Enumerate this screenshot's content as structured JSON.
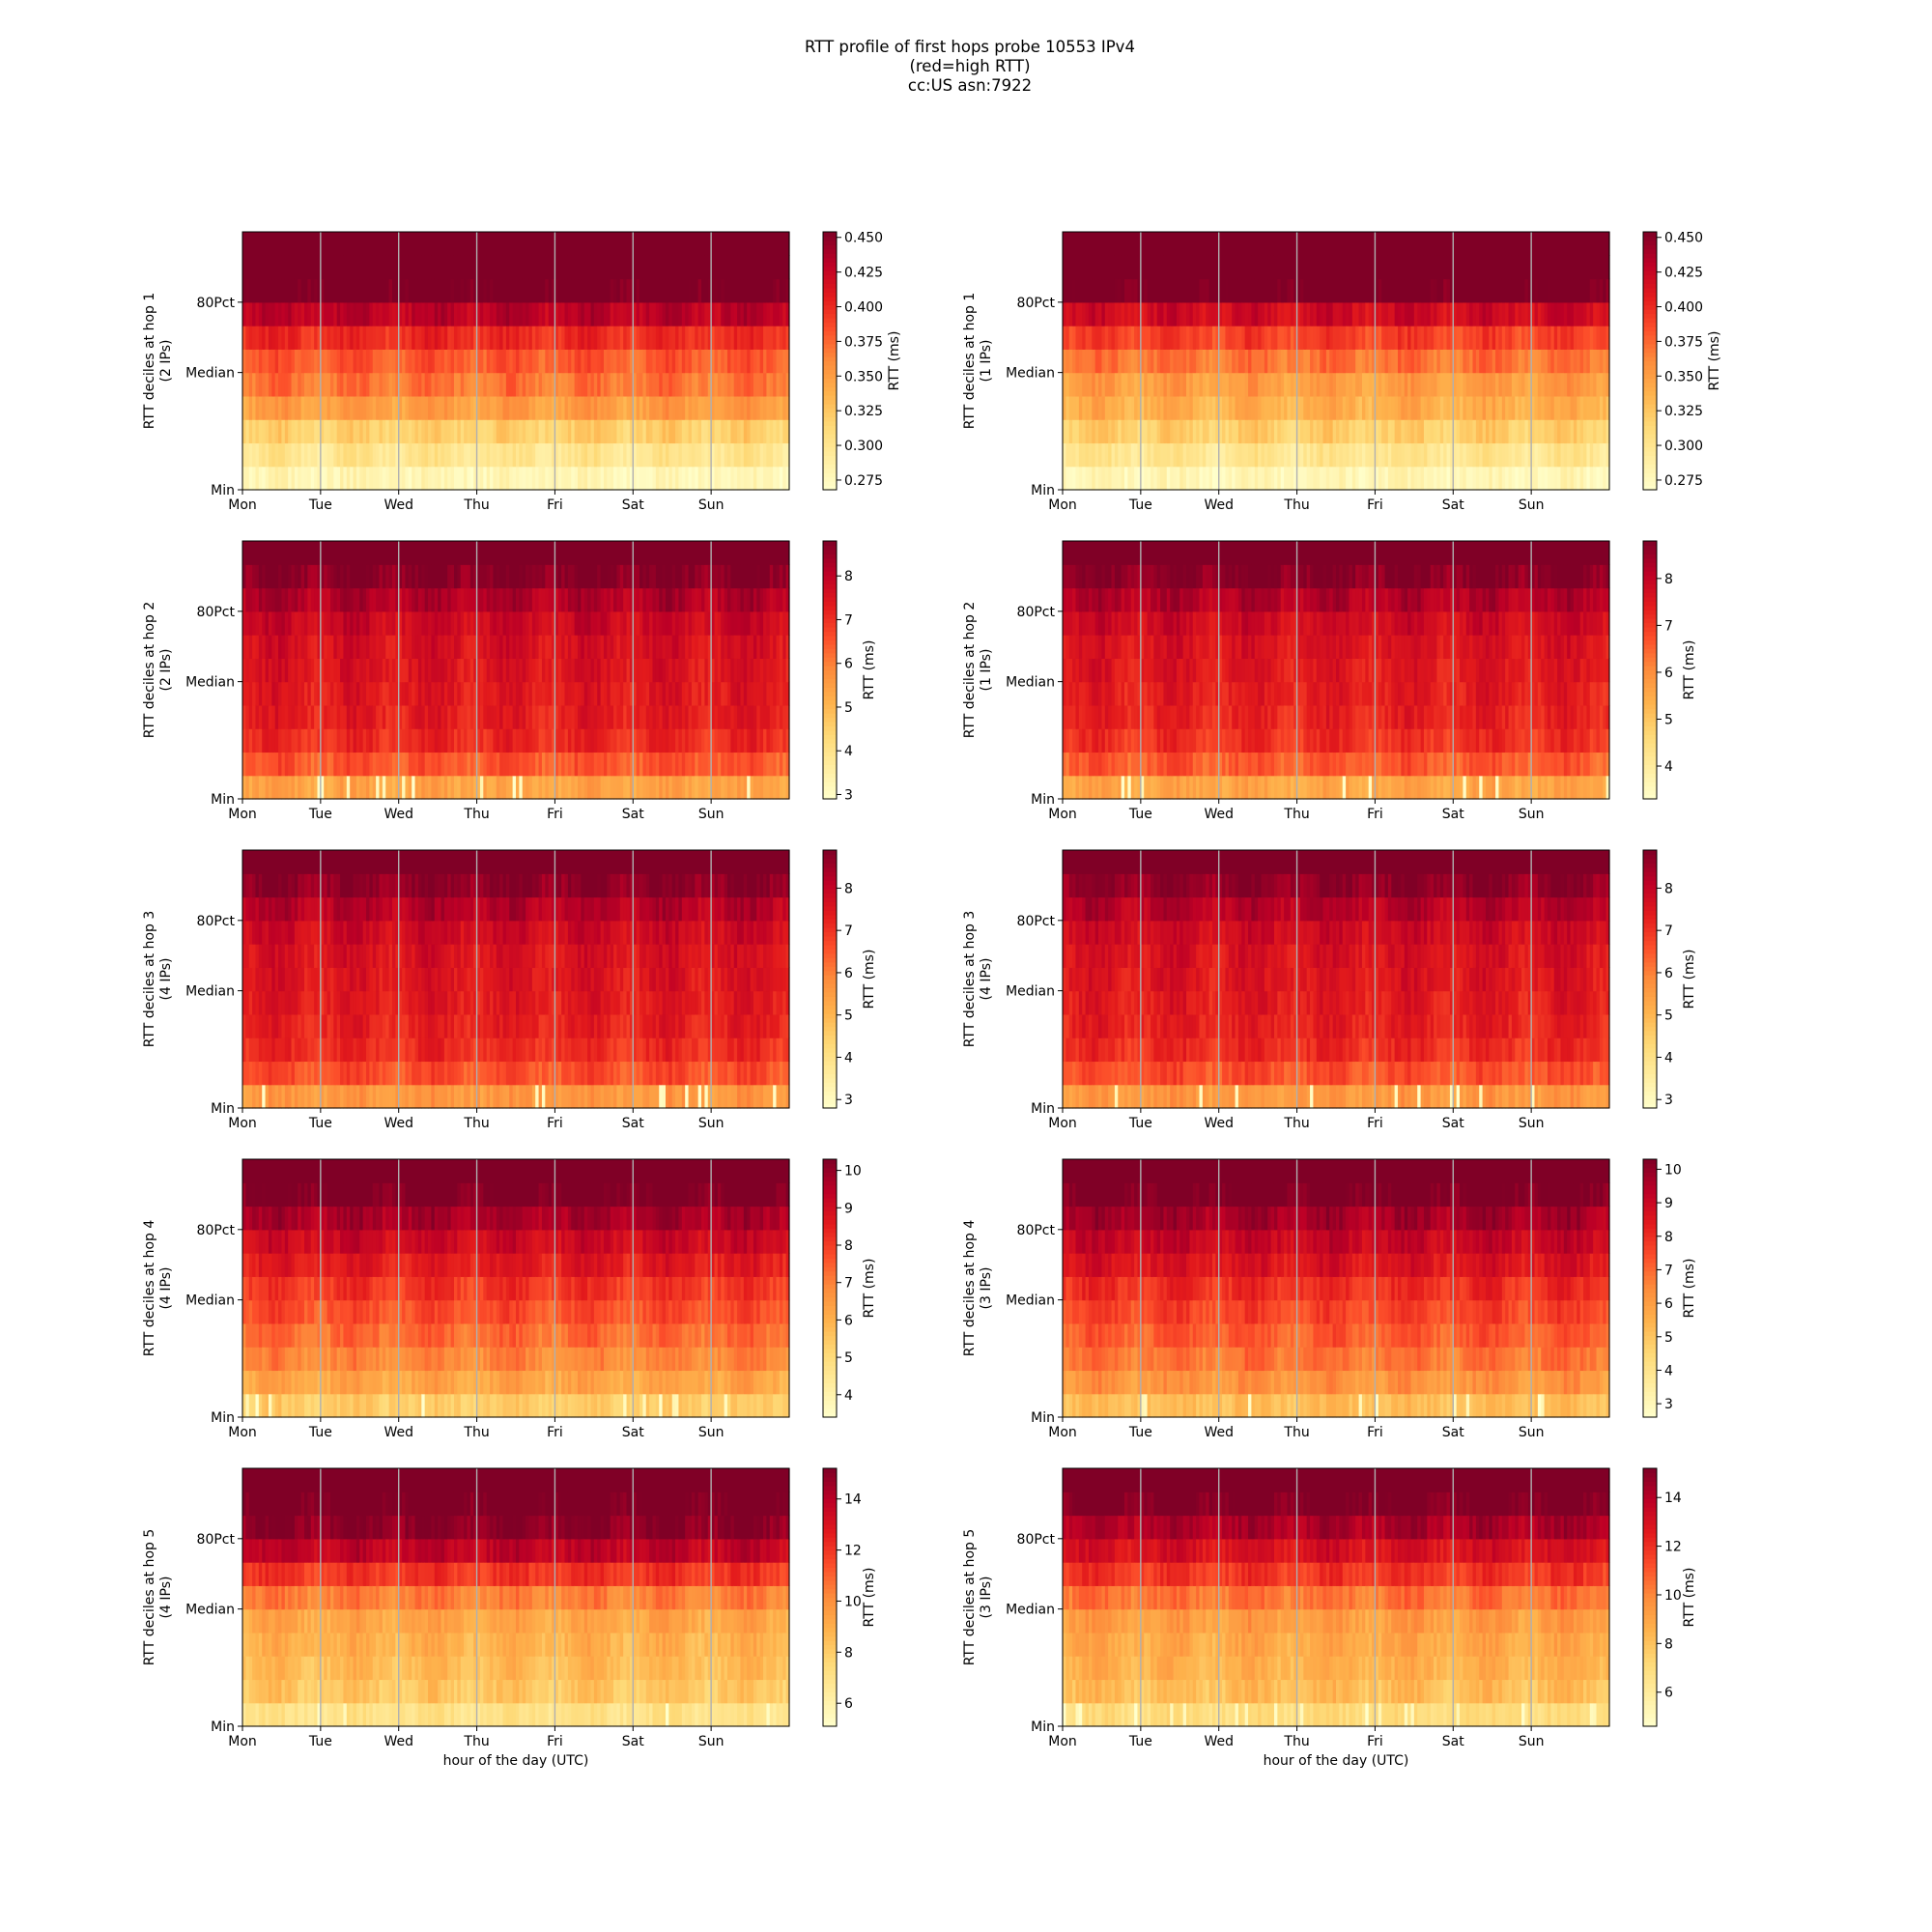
{
  "title_lines": [
    "RTT profile of first hops probe 10553 IPv4",
    "(red=high RTT)",
    "cc:US asn:7922"
  ],
  "chart_data": {
    "type": "heatmap",
    "colormap": "YlOrRd",
    "colormap_stops": [
      "#ffffcc",
      "#ffeda0",
      "#fed976",
      "#feb24c",
      "#fd8d3c",
      "#fc4e2a",
      "#e31a1c",
      "#bd0026",
      "#800026"
    ],
    "x_tick_labels": [
      "Mon",
      "Tue",
      "Wed",
      "Thu",
      "Fri",
      "Sat",
      "Sun"
    ],
    "x_range_hours": [
      0,
      168
    ],
    "y_tick_labels": [
      "Min",
      "Median",
      "80Pct"
    ],
    "y_tick_deciles": [
      0,
      5,
      8
    ],
    "y_range_deciles": [
      0,
      11
    ],
    "vertical_day_lines": true,
    "xlabel": "hour of the day (UTC)",
    "colorbar_label": "RTT (ms)",
    "panels": [
      {
        "row": 0,
        "col": 0,
        "ylabel_line1": "RTT deciles at hop 1",
        "ylabel_line2": "(2 IPs)",
        "xlabel": "",
        "cbar_ticks": [
          0.275,
          0.3,
          0.325,
          0.35,
          0.375,
          0.4,
          0.425,
          0.45
        ],
        "cbar_tick_labels": [
          "0.275",
          "0.300",
          "0.325",
          "0.350",
          "0.375",
          "0.400",
          "0.425",
          "0.450"
        ],
        "cbar_range": [
          0.268,
          0.454
        ],
        "decile_rtt_ms": [
          0.28,
          0.3,
          0.32,
          0.35,
          0.37,
          0.38,
          0.4,
          0.43,
          0.46,
          0.48,
          0.5
        ]
      },
      {
        "row": 0,
        "col": 1,
        "ylabel_line1": "RTT deciles at hop 1",
        "ylabel_line2": "(1 IPs)",
        "xlabel": "",
        "cbar_ticks": [
          0.275,
          0.3,
          0.325,
          0.35,
          0.375,
          0.4,
          0.425,
          0.45
        ],
        "cbar_tick_labels": [
          "0.275",
          "0.300",
          "0.325",
          "0.350",
          "0.375",
          "0.400",
          "0.425",
          "0.450"
        ],
        "cbar_range": [
          0.268,
          0.454
        ],
        "decile_rtt_ms": [
          0.28,
          0.3,
          0.32,
          0.34,
          0.35,
          0.37,
          0.39,
          0.42,
          0.46,
          0.48,
          0.5
        ]
      },
      {
        "row": 1,
        "col": 0,
        "ylabel_line1": "RTT deciles at hop 2",
        "ylabel_line2": "(2 IPs)",
        "xlabel": "",
        "cbar_ticks": [
          3,
          4,
          5,
          6,
          7,
          8
        ],
        "cbar_tick_labels": [
          "3",
          "4",
          "5",
          "6",
          "7",
          "8"
        ],
        "cbar_range": [
          2.9,
          8.8
        ],
        "decile_rtt_ms": [
          5.4,
          6.5,
          7.1,
          7.3,
          7.4,
          7.5,
          7.6,
          7.8,
          8.2,
          8.7,
          9.5
        ]
      },
      {
        "row": 1,
        "col": 1,
        "ylabel_line1": "RTT deciles at hop 2",
        "ylabel_line2": "(1 IPs)",
        "xlabel": "",
        "cbar_ticks": [
          4,
          5,
          6,
          7,
          8
        ],
        "cbar_tick_labels": [
          "4",
          "5",
          "6",
          "7",
          "8"
        ],
        "cbar_range": [
          3.3,
          8.8
        ],
        "decile_rtt_ms": [
          5.6,
          6.6,
          7.1,
          7.3,
          7.4,
          7.5,
          7.6,
          7.8,
          8.2,
          8.7,
          9.5
        ]
      },
      {
        "row": 2,
        "col": 0,
        "ylabel_line1": "RTT deciles at hop 3",
        "ylabel_line2": "(4 IPs)",
        "xlabel": "",
        "cbar_ticks": [
          3,
          4,
          5,
          6,
          7,
          8
        ],
        "cbar_tick_labels": [
          "3",
          "4",
          "5",
          "6",
          "7",
          "8"
        ],
        "cbar_range": [
          2.8,
          8.9
        ],
        "decile_rtt_ms": [
          5.6,
          6.6,
          7.1,
          7.3,
          7.4,
          7.5,
          7.6,
          7.8,
          8.2,
          8.7,
          9.5
        ]
      },
      {
        "row": 2,
        "col": 1,
        "ylabel_line1": "RTT deciles at hop 3",
        "ylabel_line2": "(4 IPs)",
        "xlabel": "",
        "cbar_ticks": [
          3,
          4,
          5,
          6,
          7,
          8
        ],
        "cbar_tick_labels": [
          "3",
          "4",
          "5",
          "6",
          "7",
          "8"
        ],
        "cbar_range": [
          2.8,
          8.9
        ],
        "decile_rtt_ms": [
          5.6,
          6.6,
          7.1,
          7.3,
          7.4,
          7.5,
          7.6,
          7.8,
          8.2,
          8.7,
          9.5
        ]
      },
      {
        "row": 3,
        "col": 0,
        "ylabel_line1": "RTT deciles at hop 4",
        "ylabel_line2": "(4 IPs)",
        "xlabel": "",
        "cbar_ticks": [
          4,
          5,
          6,
          7,
          8,
          9,
          10
        ],
        "cbar_tick_labels": [
          "4",
          "5",
          "6",
          "7",
          "8",
          "9",
          "10"
        ],
        "cbar_range": [
          3.4,
          10.3
        ],
        "decile_rtt_ms": [
          5.4,
          6.3,
          6.9,
          7.3,
          7.7,
          8.1,
          8.6,
          9.1,
          9.7,
          10.4,
          11.0
        ]
      },
      {
        "row": 3,
        "col": 1,
        "ylabel_line1": "RTT deciles at hop 4",
        "ylabel_line2": "(3 IPs)",
        "xlabel": "",
        "cbar_ticks": [
          3,
          4,
          5,
          6,
          7,
          8,
          9,
          10
        ],
        "cbar_tick_labels": [
          "3",
          "4",
          "5",
          "6",
          "7",
          "8",
          "9",
          "10"
        ],
        "cbar_range": [
          2.6,
          10.3
        ],
        "decile_rtt_ms": [
          5.2,
          6.2,
          6.8,
          7.2,
          7.6,
          8.0,
          8.6,
          9.1,
          9.7,
          10.4,
          11.0
        ]
      },
      {
        "row": 4,
        "col": 0,
        "ylabel_line1": "RTT deciles at hop 5",
        "ylabel_line2": "(4 IPs)",
        "xlabel": "hour of the day (UTC)",
        "cbar_ticks": [
          6,
          8,
          10,
          12,
          14
        ],
        "cbar_tick_labels": [
          "6",
          "8",
          "10",
          "12",
          "14"
        ],
        "cbar_range": [
          5.1,
          15.2
        ],
        "decile_rtt_ms": [
          7.0,
          8.2,
          8.6,
          8.9,
          9.3,
          10.4,
          12.0,
          13.8,
          15.0,
          15.5,
          16.0
        ]
      },
      {
        "row": 4,
        "col": 1,
        "ylabel_line1": "RTT deciles at hop 5",
        "ylabel_line2": "(3 IPs)",
        "xlabel": "hour of the day (UTC)",
        "cbar_ticks": [
          6,
          8,
          10,
          12,
          14
        ],
        "cbar_tick_labels": [
          "6",
          "8",
          "10",
          "12",
          "14"
        ],
        "cbar_range": [
          4.6,
          15.2
        ],
        "decile_rtt_ms": [
          7.0,
          8.2,
          8.6,
          8.9,
          9.3,
          10.4,
          11.8,
          13.0,
          14.2,
          15.3,
          16.0
        ]
      }
    ]
  }
}
